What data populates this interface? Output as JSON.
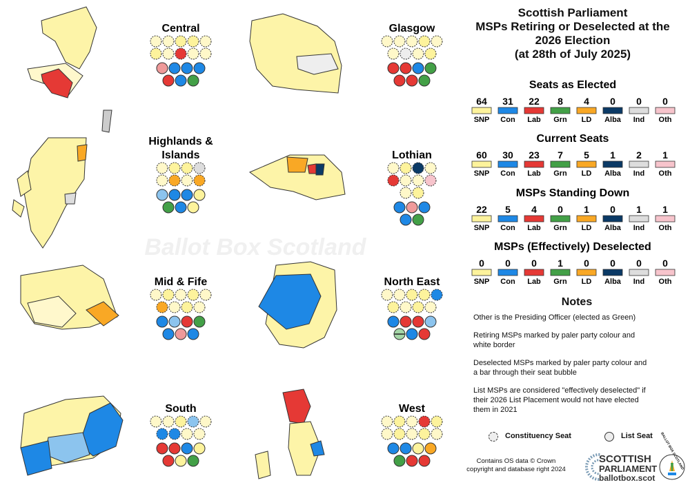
{
  "title": [
    "Scottish Parliament",
    "MSPs Retiring or Deselected at the",
    "2026 Election",
    "(at 28th of July 2025)"
  ],
  "watermark": "Ballot Box Scotland",
  "colors": {
    "SNP": "#fdf39c",
    "Con": "#1e88e5",
    "Lab": "#e53935",
    "Grn": "#43a047",
    "LD": "#f9a825",
    "Alba": "#0b3a66",
    "Ind": "#dddddd",
    "Oth": "#f7c4cc",
    "Con_pale": "#8cc4ee",
    "Lab_pale": "#ef9a9a",
    "Grn_pale": "#a5d6a7",
    "Ind_pale": "#eeeeee",
    "SNP_pale": "#fff8c9"
  },
  "parties": [
    "SNP",
    "Con",
    "Lab",
    "Grn",
    "LD",
    "Alba",
    "Ind",
    "Oth"
  ],
  "tables": [
    {
      "title": "Seats as Elected",
      "values": [
        "64",
        "31",
        "22",
        "8",
        "4",
        "0",
        "0",
        "0"
      ]
    },
    {
      "title": "Current Seats",
      "values": [
        "60",
        "30",
        "23",
        "7",
        "5",
        "1",
        "2",
        "1"
      ]
    },
    {
      "title": "MSPs Standing Down",
      "values": [
        "22",
        "5",
        "4",
        "0",
        "1",
        "0",
        "1",
        "1"
      ]
    },
    {
      "title": "MSPs (Effectively) Deselected",
      "values": [
        "0",
        "0",
        "0",
        "1",
        "0",
        "0",
        "0",
        "0"
      ]
    }
  ],
  "notes": {
    "title": "Notes",
    "items": [
      [
        "Other is the Presiding Officer (elected as Green)"
      ],
      [
        "Retiring MSPs marked by paler party colour and",
        "white border"
      ],
      [
        "Deselected MSPs marked by paler party colour and",
        "a bar through their seat bubble"
      ],
      [
        "List MSPs are considered \"effectively deselected\" if",
        "their  2026 List Placement would not have elected",
        "them in 2021"
      ]
    ]
  },
  "legend": {
    "constituency": "Constituency Seat",
    "list": "List Seat"
  },
  "credit": [
    "Contains OS data © Crown",
    "copyright and database right 2024"
  ],
  "logo": {
    "line1": "SCOTTISH",
    "line2": "PARLIAMENT",
    "site": "ballotbox.scot",
    "badge": "BALLOT BOX SCOTLAND"
  },
  "chart_data": {
    "type": "table",
    "regions": [
      {
        "name": [
          "Central"
        ],
        "constituency": [
          [
            "SNP",
            "SNP",
            "SNP",
            "SNP",
            "SNP"
          ],
          [
            "SNP",
            "SNP",
            "Lab",
            "SNP",
            "SNP"
          ]
        ],
        "list": [
          [
            "Lab_pale",
            "Con",
            "Con",
            "Con"
          ],
          [
            "Lab",
            "Con",
            "Grn"
          ]
        ],
        "retiring_constituency": [
          [
            1,
            1,
            0,
            0,
            1
          ],
          [
            0,
            1,
            0,
            1,
            1
          ]
        ]
      },
      {
        "name": [
          "Glasgow"
        ],
        "constituency": [
          [
            "SNP",
            "SNP",
            "SNP",
            "SNP",
            "SNP"
          ],
          [
            "SNP",
            "Ind",
            "SNP",
            "SNP"
          ]
        ],
        "list": [
          [
            "Lab",
            "Lab",
            "Con",
            "Grn"
          ],
          [
            "Lab",
            "Lab",
            "Grn"
          ]
        ],
        "retiring_constituency": [
          [
            1,
            1,
            1,
            0,
            1
          ],
          [
            1,
            1,
            1,
            0
          ]
        ]
      },
      {
        "name": [
          "Highlands &",
          "Islands"
        ],
        "constituency": [
          [
            "SNP",
            "SNP",
            "SNP",
            "Ind"
          ],
          [
            "SNP",
            "LD",
            "SNP",
            "LD"
          ]
        ],
        "list": [
          [
            "Con_pale",
            "Con",
            "Con",
            "SNP"
          ],
          [
            "Grn",
            "Con",
            "SNP"
          ]
        ],
        "retiring_constituency": [
          [
            1,
            0,
            0,
            0
          ],
          [
            1,
            0,
            1,
            0
          ]
        ]
      },
      {
        "name": [
          "Lothian"
        ],
        "constituency": [
          [
            "SNP",
            "SNP",
            "Alba",
            "SNP"
          ],
          [
            "Lab",
            "SNP",
            "SNP",
            "Oth"
          ],
          [
            "SNP",
            "SNP"
          ]
        ],
        "list": [
          [
            "Con",
            "Lab_pale",
            "Con"
          ],
          [
            "Con",
            "Grn"
          ]
        ],
        "retiring_constituency": [
          [
            1,
            0,
            0,
            1
          ],
          [
            0,
            1,
            1,
            0
          ],
          [
            1,
            0
          ]
        ]
      },
      {
        "name": [
          "Mid & Fife"
        ],
        "constituency": [
          [
            "SNP",
            "SNP",
            "SNP",
            "SNP",
            "SNP"
          ],
          [
            "LD",
            "SNP",
            "SNP",
            "SNP"
          ]
        ],
        "list": [
          [
            "Con",
            "Con_pale",
            "Lab",
            "Grn"
          ],
          [
            "Con",
            "Lab_pale",
            "Con"
          ]
        ],
        "retiring_constituency": [
          [
            1,
            0,
            1,
            0,
            1
          ],
          [
            0,
            1,
            0,
            1
          ]
        ]
      },
      {
        "name": [
          "North East"
        ],
        "constituency": [
          [
            "SNP",
            "SNP",
            "SNP",
            "SNP",
            "Con"
          ],
          [
            "SNP",
            "SNP",
            "SNP",
            "SNP"
          ]
        ],
        "list": [
          [
            "Con",
            "Lab",
            "Lab",
            "Con_pale"
          ],
          [
            "Grn_pale",
            "Con",
            "Lab"
          ]
        ],
        "retiring_constituency": [
          [
            1,
            1,
            0,
            0,
            0
          ],
          [
            0,
            1,
            0,
            1
          ]
        ],
        "deselected_list": [
          [
            0,
            0,
            0,
            0
          ],
          [
            1,
            0,
            0
          ]
        ]
      },
      {
        "name": [
          "South"
        ],
        "constituency": [
          [
            "SNP",
            "SNP",
            "SNP",
            "Con_pale",
            "SNP"
          ],
          [
            "Con",
            "Con",
            "SNP",
            "SNP"
          ]
        ],
        "list": [
          [
            "Lab",
            "Lab",
            "Con",
            "SNP"
          ],
          [
            "Lab",
            "SNP",
            "Grn"
          ]
        ],
        "retiring_constituency": [
          [
            1,
            1,
            0,
            0,
            1
          ],
          [
            0,
            0,
            1,
            1
          ]
        ]
      },
      {
        "name": [
          "West"
        ],
        "constituency": [
          [
            "SNP",
            "SNP",
            "SNP",
            "Lab",
            "SNP"
          ],
          [
            "SNP",
            "SNP",
            "SNP",
            "SNP",
            "SNP"
          ]
        ],
        "list": [
          [
            "Con",
            "Con",
            "SNP",
            "LD"
          ],
          [
            "Grn",
            "Lab",
            "Lab"
          ]
        ],
        "retiring_constituency": [
          [
            1,
            0,
            1,
            0,
            0
          ],
          [
            1,
            0,
            1,
            0,
            1
          ]
        ]
      }
    ]
  }
}
